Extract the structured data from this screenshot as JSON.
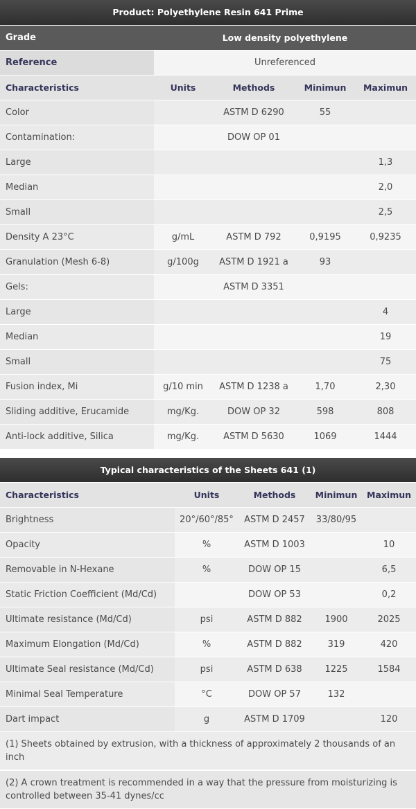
{
  "table1": {
    "title": "Product: Polyethylene Resin 641 Prime",
    "grade": {
      "label": "Grade",
      "value": "Low density polyethylene"
    },
    "reference": {
      "label": "Reference",
      "value": "Unreferenced"
    },
    "headers": [
      "Characteristics",
      "Units",
      "Methods",
      "Minimun",
      "Maximun"
    ],
    "rows": [
      [
        "Color",
        "",
        "ASTM D 6290",
        "55",
        ""
      ],
      [
        "Contamination:",
        "",
        "DOW OP 01",
        "",
        ""
      ],
      [
        "Large",
        "",
        "",
        "",
        "1,3"
      ],
      [
        "Median",
        "",
        "",
        "",
        "2,0"
      ],
      [
        "Small",
        "",
        "",
        "",
        "2,5"
      ],
      [
        "Density A 23°C",
        "g/mL",
        "ASTM D 792",
        "0,9195",
        "0,9235"
      ],
      [
        "Granulation (Mesh 6-8)",
        "g/100g",
        "ASTM D 1921 a",
        "93",
        ""
      ],
      [
        "Gels:",
        "",
        "ASTM D 3351",
        "",
        ""
      ],
      [
        "Large",
        "",
        "",
        "",
        "4"
      ],
      [
        "Median",
        "",
        "",
        "",
        "19"
      ],
      [
        "Small",
        "",
        "",
        "",
        "75"
      ],
      [
        "Fusion index, Mi",
        "g/10 min",
        "ASTM D 1238 a",
        "1,70",
        "2,30"
      ],
      [
        "Sliding additive, Erucamide",
        "mg/Kg.",
        "DOW OP 32",
        "598",
        "808"
      ],
      [
        "Anti-lock additive, Silica",
        "mg/Kg.",
        "ASTM D 5630",
        "1069",
        "1444"
      ]
    ]
  },
  "table2": {
    "title": "Typical characteristics of the Sheets 641 (1)",
    "headers": [
      "Characteristics",
      "Units",
      "Methods",
      "Minimun",
      "Maximun"
    ],
    "rows": [
      [
        "Brightness",
        "20°/60°/85°",
        "ASTM D 2457",
        "33/80/95",
        ""
      ],
      [
        "Opacity",
        "%",
        "ASTM D 1003",
        "",
        "10"
      ],
      [
        "Removable in N-Hexane",
        "%",
        "DOW OP 15",
        "",
        "6,5"
      ],
      [
        "Static Friction Coefficient (Md/Cd)",
        "",
        "DOW OP 53",
        "",
        "0,2"
      ],
      [
        "Ultimate resistance (Md/Cd)",
        "psi",
        "ASTM D 882",
        "1900",
        "2025"
      ],
      [
        "Maximum Elongation (Md/Cd)",
        "%",
        "ASTM D 882",
        "319",
        "420"
      ],
      [
        "Ultimate Seal resistance (Md/Cd)",
        "psi",
        "ASTM D 638",
        "1225",
        "1584"
      ],
      [
        "Minimal Seal Temperature",
        "°C",
        "DOW OP 57",
        "132",
        ""
      ],
      [
        "Dart impact",
        "g",
        "ASTM D 1709",
        "",
        "120"
      ]
    ],
    "notes": [
      "(1) Sheets obtained by extrusion, with a thickness of approximately 2 thousands of an inch",
      "(2) A crown treatment is recommended in a way that the pressure from moisturizing is controlled between 35-41 dynes/cc"
    ]
  }
}
